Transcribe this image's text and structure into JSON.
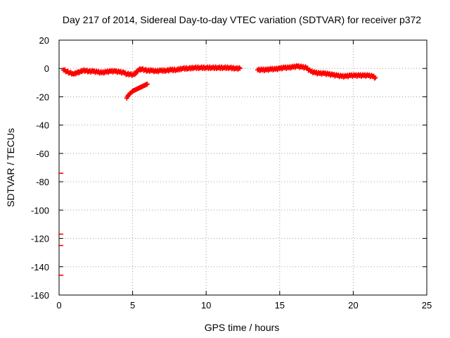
{
  "chart_data": {
    "type": "scatter",
    "title": "Day 217 of 2014, Sidereal Day-to-day VTEC variation (SDTVAR) for receiver p372",
    "xlabel": "GPS time / hours",
    "ylabel": "SDTVAR / TECUs",
    "xlim": [
      0,
      25
    ],
    "ylim": [
      -160,
      20
    ],
    "xticks": [
      0,
      5,
      10,
      15,
      20,
      25
    ],
    "yticks": [
      20,
      0,
      -20,
      -40,
      -60,
      -80,
      -100,
      -120,
      -140,
      -160
    ],
    "grid": true,
    "marker": "+",
    "color": "#ff0000",
    "series": [
      {
        "name": "main-track",
        "x": [
          0.3,
          0.5,
          0.7,
          0.9,
          1.0,
          1.2,
          1.4,
          1.6,
          1.8,
          2.0,
          2.3,
          2.6,
          2.9,
          3.2,
          3.5,
          3.8,
          4.1,
          4.4,
          4.6,
          4.8,
          5.0,
          5.2,
          5.4,
          5.6,
          5.8,
          6.0,
          6.3,
          6.6,
          6.9,
          7.3,
          7.6,
          8.0,
          8.4,
          8.8,
          9.2,
          9.6,
          10.0,
          10.4,
          10.8,
          11.2,
          11.6,
          12.0,
          12.3,
          13.5,
          13.8,
          14.1,
          14.4,
          14.7,
          15.0,
          15.3,
          15.6,
          15.9,
          16.2,
          16.5,
          16.8,
          17.1,
          17.4,
          17.7,
          18.0,
          18.3,
          18.6,
          18.9,
          19.2,
          19.5,
          19.8,
          20.1,
          20.4,
          20.7,
          21.0,
          21.3,
          21.5
        ],
        "y": [
          -1,
          -2,
          -3,
          -3.5,
          -4,
          -3,
          -2.5,
          -1.5,
          -1.5,
          -2,
          -2,
          -2.5,
          -3,
          -2.5,
          -2,
          -2,
          -2.5,
          -3,
          -4,
          -4,
          -4.5,
          -3.5,
          -1,
          -0.5,
          -1,
          -1.5,
          -1.5,
          -2,
          -1.5,
          -1.5,
          -1,
          -1,
          0,
          0,
          0.5,
          0.5,
          0.5,
          0.5,
          0.5,
          0.5,
          0.5,
          0,
          0,
          -1,
          -1,
          -1,
          -0.5,
          -0.5,
          0,
          0.5,
          0.5,
          1,
          1.5,
          1,
          0.5,
          -2,
          -3,
          -3.5,
          -3.5,
          -4,
          -4.5,
          -5,
          -5.5,
          -5.5,
          -5,
          -5,
          -5,
          -5,
          -5,
          -5.5,
          -6.5
        ]
      },
      {
        "name": "descending-branch",
        "x": [
          4.6,
          4.7,
          4.8,
          4.9,
          5.0,
          5.1,
          5.2,
          5.3,
          5.4,
          5.5,
          5.6,
          5.7,
          5.8,
          5.9,
          6.0
        ],
        "y": [
          -21,
          -19,
          -18,
          -17,
          -16,
          -15.5,
          -15,
          -14.5,
          -14,
          -13.5,
          -13,
          -12.5,
          -12,
          -11.5,
          -11
        ]
      },
      {
        "name": "outliers",
        "x": [
          0.05,
          0.05,
          0.05,
          0.05
        ],
        "y": [
          -74,
          -117,
          -125,
          -146
        ]
      }
    ]
  }
}
